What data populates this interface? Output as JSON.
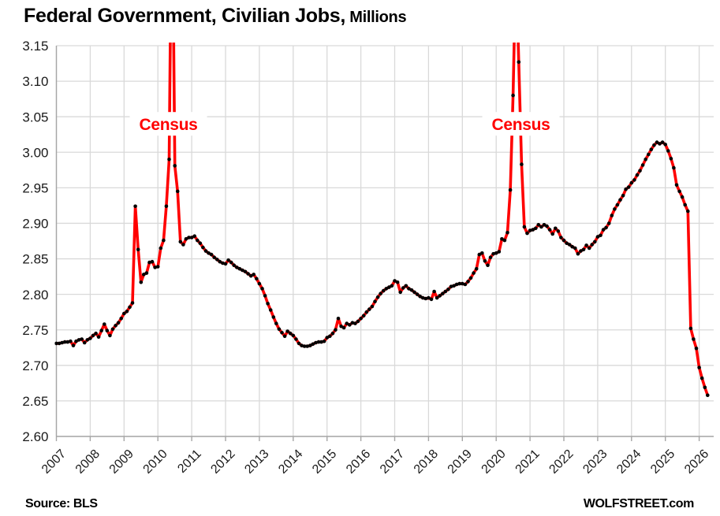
{
  "title": {
    "main": "Federal Government, Civilian Jobs,",
    "suffix": " Millions"
  },
  "footer": {
    "source": "Source: BLS",
    "site": "WOLFSTREET.com"
  },
  "colors": {
    "line": "#FF0000",
    "marker": "#000000",
    "gridline": "#D9D9D9",
    "axis": "#A6A6A6",
    "tick_label": "#1a1a1a",
    "annotation": "#FF0000",
    "background": "#FFFFFF"
  },
  "chart_data": {
    "type": "line",
    "title": "Federal Government, Civilian Jobs, Millions",
    "xlabel": "",
    "ylabel": "",
    "unit": "millions of jobs",
    "ylim": [
      2.6,
      3.15
    ],
    "y_ticks": [
      3.15,
      3.1,
      3.05,
      3.0,
      2.95,
      2.9,
      2.85,
      2.8,
      2.75,
      2.7,
      2.65,
      2.6
    ],
    "x_ticks": [
      2007,
      2008,
      2009,
      2010,
      2011,
      2012,
      2013,
      2014,
      2015,
      2016,
      2017,
      2018,
      2019,
      2020,
      2021,
      2022,
      2023,
      2024,
      2025,
      2026
    ],
    "grid": true,
    "legend": "none",
    "annotations": [
      {
        "text": "Census",
        "x_year": 2010.31,
        "y_value": 3.04
      },
      {
        "text": "Census",
        "x_year": 2020.73,
        "y_value": 3.04
      }
    ],
    "series": [
      {
        "name": "Federal government civilian jobs, millions",
        "start": "2007-01",
        "frequency": "monthly",
        "note": "2010 and 2020 census-hiring spikes exceed the 3.15 axis maximum and are clipped",
        "values": [
          2.731,
          2.731,
          2.732,
          2.733,
          2.733,
          2.734,
          2.728,
          2.734,
          2.736,
          2.737,
          2.732,
          2.736,
          2.738,
          2.742,
          2.745,
          2.74,
          2.749,
          2.758,
          2.749,
          2.742,
          2.751,
          2.756,
          2.76,
          2.766,
          2.773,
          2.776,
          2.782,
          2.788,
          2.924,
          2.863,
          2.817,
          2.828,
          2.83,
          2.845,
          2.846,
          2.838,
          2.839,
          2.865,
          2.876,
          2.924,
          2.99,
          3.41,
          2.981,
          2.945,
          2.874,
          2.87,
          2.878,
          2.88,
          2.88,
          2.882,
          2.876,
          2.872,
          2.866,
          2.861,
          2.858,
          2.856,
          2.852,
          2.849,
          2.846,
          2.844,
          2.843,
          2.848,
          2.845,
          2.841,
          2.838,
          2.836,
          2.834,
          2.832,
          2.829,
          2.826,
          2.828,
          2.822,
          2.815,
          2.808,
          2.798,
          2.787,
          2.778,
          2.768,
          2.759,
          2.751,
          2.746,
          2.741,
          2.748,
          2.745,
          2.742,
          2.737,
          2.731,
          2.728,
          2.727,
          2.727,
          2.728,
          2.73,
          2.732,
          2.733,
          2.733,
          2.734,
          2.739,
          2.741,
          2.745,
          2.75,
          2.766,
          2.755,
          2.753,
          2.759,
          2.757,
          2.76,
          2.759,
          2.762,
          2.766,
          2.77,
          2.775,
          2.779,
          2.783,
          2.79,
          2.796,
          2.801,
          2.805,
          2.808,
          2.81,
          2.812,
          2.819,
          2.817,
          2.803,
          2.809,
          2.812,
          2.808,
          2.806,
          2.803,
          2.8,
          2.797,
          2.795,
          2.794,
          2.795,
          2.793,
          2.804,
          2.795,
          2.798,
          2.801,
          2.804,
          2.807,
          2.811,
          2.812,
          2.814,
          2.815,
          2.815,
          2.814,
          2.818,
          2.823,
          2.83,
          2.836,
          2.856,
          2.858,
          2.847,
          2.841,
          2.852,
          2.857,
          2.858,
          2.86,
          2.878,
          2.876,
          2.887,
          2.947,
          3.08,
          3.27,
          3.127,
          2.983,
          2.895,
          2.886,
          2.89,
          2.891,
          2.893,
          2.898,
          2.895,
          2.898,
          2.896,
          2.891,
          2.885,
          2.893,
          2.889,
          2.88,
          2.876,
          2.872,
          2.87,
          2.867,
          2.865,
          2.857,
          2.861,
          2.863,
          2.869,
          2.865,
          2.87,
          2.874,
          2.881,
          2.883,
          2.891,
          2.894,
          2.9,
          2.911,
          2.92,
          2.926,
          2.933,
          2.939,
          2.948,
          2.951,
          2.957,
          2.961,
          2.968,
          2.974,
          2.982,
          2.99,
          2.997,
          3.004,
          3.01,
          3.014,
          3.012,
          3.014,
          3.011,
          3.002,
          2.991,
          2.978,
          2.954,
          2.945,
          2.937,
          2.926,
          2.917,
          2.752,
          2.737,
          2.724,
          2.697,
          2.682,
          2.669,
          2.658
        ]
      }
    ]
  }
}
